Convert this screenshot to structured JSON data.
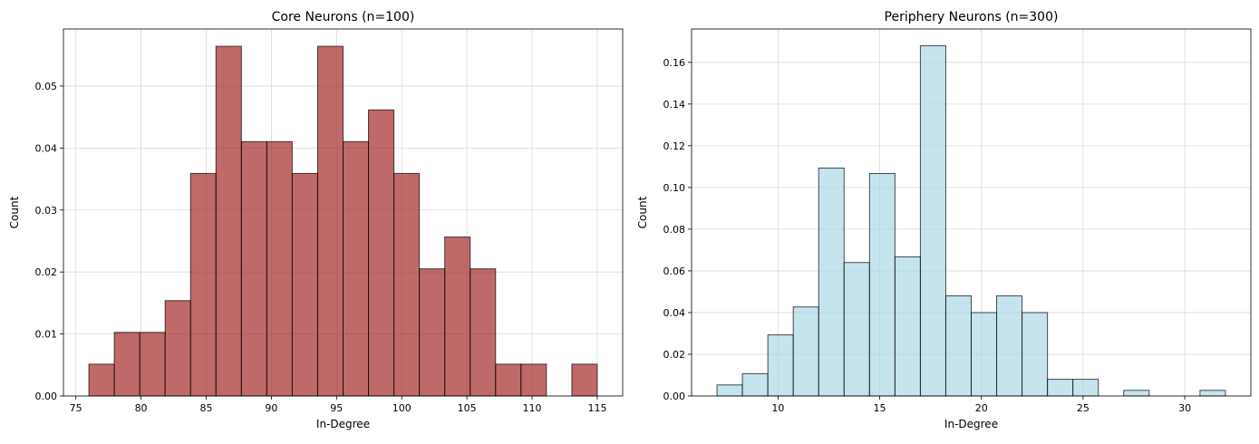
{
  "chart_data": [
    {
      "type": "bar",
      "title": "Core Neurons (n=100)",
      "xlabel": "In-Degree",
      "ylabel": "Count",
      "xlim": [
        74.05,
        116.95
      ],
      "ylim": [
        0,
        0.0592
      ],
      "xticks": [
        75,
        80,
        85,
        90,
        95,
        100,
        105,
        110,
        115
      ],
      "yticks": [
        0.0,
        0.01,
        0.02,
        0.03,
        0.04,
        0.05
      ],
      "ytick_labels": [
        "0.00",
        "0.01",
        "0.02",
        "0.03",
        "0.04",
        "0.05"
      ],
      "grid": true,
      "bin_width": 1.95,
      "bin_starts": [
        76.0,
        77.95,
        79.9,
        81.85,
        83.8,
        85.75,
        87.7,
        89.65,
        91.6,
        93.55,
        95.5,
        97.45,
        99.4,
        101.35,
        103.3,
        105.25,
        107.2,
        109.15,
        111.1,
        113.05
      ],
      "values": [
        0.00513,
        0.01026,
        0.01026,
        0.01538,
        0.0359,
        0.05641,
        0.04103,
        0.04103,
        0.0359,
        0.05641,
        0.04103,
        0.04615,
        0.0359,
        0.02051,
        0.02564,
        0.02051,
        0.00513,
        0.00513,
        0.0,
        0.00513
      ],
      "colors": {
        "fill": "#a52a2a",
        "edge": "#000000"
      }
    },
    {
      "type": "bar",
      "title": "Periphery Neurons (n=300)",
      "xlabel": "In-Degree",
      "ylabel": "Count",
      "xlim": [
        5.75,
        33.25
      ],
      "ylim": [
        0,
        0.176
      ],
      "xticks": [
        10,
        15,
        20,
        25,
        30
      ],
      "yticks": [
        0.0,
        0.02,
        0.04,
        0.06,
        0.08,
        0.1,
        0.12,
        0.14,
        0.16
      ],
      "ytick_labels": [
        "0.00",
        "0.02",
        "0.04",
        "0.06",
        "0.08",
        "0.10",
        "0.12",
        "0.14",
        "0.16"
      ],
      "grid": true,
      "bin_width": 1.25,
      "bin_starts": [
        7.0,
        8.25,
        9.5,
        10.75,
        12.0,
        13.25,
        14.5,
        15.75,
        17.0,
        18.25,
        19.5,
        20.75,
        22.0,
        23.25,
        24.5,
        25.75,
        27.0,
        28.25,
        29.5,
        30.75
      ],
      "values": [
        0.0053,
        0.0107,
        0.0293,
        0.0427,
        0.1093,
        0.064,
        0.1067,
        0.0667,
        0.168,
        0.048,
        0.04,
        0.048,
        0.04,
        0.008,
        0.008,
        0.0,
        0.0027,
        0.0,
        0.0,
        0.0027
      ],
      "colors": {
        "fill": "#add8e6",
        "edge": "#000000"
      }
    }
  ]
}
